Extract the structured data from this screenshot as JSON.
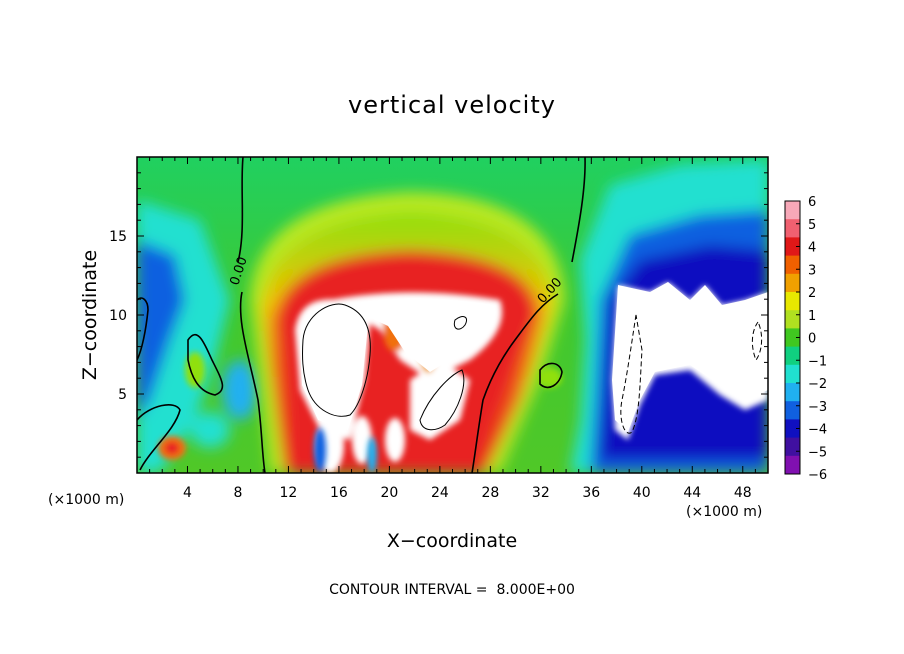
{
  "chart_data": {
    "type": "heatmap",
    "title": "vertical velocity",
    "xlabel": "X−coordinate",
    "ylabel": "Z−coordinate",
    "x_unit_label": "(×1000 m)",
    "z_unit_label": "(×1000 m)",
    "xlim": [
      0,
      50
    ],
    "ylim": [
      0,
      20
    ],
    "x_ticks": [
      "4",
      "8",
      "12",
      "16",
      "20",
      "24",
      "28",
      "32",
      "36",
      "40",
      "44",
      "48"
    ],
    "y_ticks": [
      "5",
      "10",
      "15"
    ],
    "contour_label": "0.00",
    "contour_interval_text": "CONTOUR INTERVAL =  8.000E+00",
    "colorbar": {
      "labels": [
        "6",
        "5",
        "4",
        "3",
        "2",
        "1",
        "0",
        "−1",
        "−2",
        "−3",
        "−4",
        "−5",
        "−6"
      ],
      "range": [
        -6,
        6
      ],
      "colors": [
        "#f7a8b8",
        "#f06070",
        "#e01818",
        "#f06000",
        "#f0a000",
        "#e8e800",
        "#b0e020",
        "#40c820",
        "#10d080",
        "#20e0d0",
        "#20b0f0",
        "#1060e0",
        "#1010c0",
        "#4010a0",
        "#8010b0"
      ]
    }
  }
}
